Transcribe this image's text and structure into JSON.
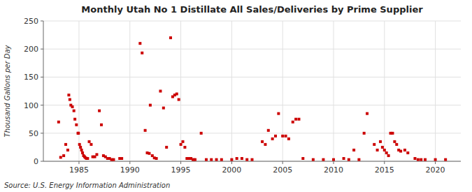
{
  "chart_data": {
    "type": "scatter",
    "title": "Monthly Utah No 1 Distillate All Sales/Deliveries by Prime Supplier",
    "y_label": "Thousand Gallons per Day",
    "source": "Source: U.S. Energy Information Administration",
    "color": "#cc0000",
    "marker": "square",
    "grid": true,
    "xlim": [
      1981.5,
      2022.5
    ],
    "ylim": [
      0,
      250
    ],
    "xticks": [
      1985,
      1990,
      1995,
      2000,
      2005,
      2010,
      2015,
      2020
    ],
    "yticks": [
      0,
      50,
      100,
      150,
      200,
      250
    ],
    "x": [
      1983.0,
      1983.2,
      1983.5,
      1983.7,
      1983.9,
      1984.0,
      1984.1,
      1984.2,
      1984.35,
      1984.5,
      1984.6,
      1984.75,
      1984.9,
      1984.95,
      1985.05,
      1985.15,
      1985.25,
      1985.35,
      1985.45,
      1985.55,
      1985.65,
      1985.75,
      1985.85,
      1986.0,
      1986.2,
      1986.35,
      1986.55,
      1986.75,
      1987.0,
      1987.2,
      1987.4,
      1987.6,
      1987.8,
      1988.0,
      1988.2,
      1988.4,
      1989.0,
      1989.2,
      1991.0,
      1991.2,
      1991.5,
      1991.7,
      1991.9,
      1992.0,
      1992.2,
      1992.4,
      1992.6,
      1993.0,
      1993.3,
      1993.6,
      1994.0,
      1994.2,
      1994.4,
      1994.6,
      1994.8,
      1995.0,
      1995.2,
      1995.4,
      1995.6,
      1995.8,
      1996.0,
      1996.2,
      1996.4,
      1997.0,
      1997.5,
      1998.0,
      1998.5,
      1999.0,
      2000.0,
      2000.5,
      2001.0,
      2001.5,
      2002.0,
      2003.0,
      2003.3,
      2003.6,
      2004.0,
      2004.3,
      2004.6,
      2005.0,
      2005.3,
      2005.6,
      2006.0,
      2006.3,
      2006.6,
      2007.0,
      2008.0,
      2009.0,
      2010.0,
      2011.0,
      2011.5,
      2012.0,
      2012.5,
      2013.0,
      2013.3,
      2014.0,
      2014.3,
      2014.6,
      2014.8,
      2015.0,
      2015.2,
      2015.4,
      2015.6,
      2015.8,
      2016.0,
      2016.2,
      2016.4,
      2016.6,
      2017.0,
      2017.3,
      2018.0,
      2018.3,
      2018.6,
      2019.0,
      2020.0,
      2021.0
    ],
    "values": [
      70,
      7,
      10,
      30,
      20,
      118,
      110,
      100,
      97,
      90,
      75,
      65,
      50,
      50,
      30,
      25,
      20,
      15,
      10,
      8,
      6,
      5,
      5,
      35,
      30,
      8,
      8,
      12,
      90,
      65,
      10,
      8,
      5,
      5,
      3,
      3,
      5,
      5,
      210,
      193,
      55,
      15,
      14,
      100,
      10,
      6,
      5,
      125,
      95,
      25,
      220,
      115,
      118,
      120,
      110,
      30,
      35,
      25,
      5,
      5,
      5,
      3,
      3,
      50,
      3,
      3,
      3,
      3,
      3,
      5,
      5,
      3,
      3,
      35,
      30,
      55,
      40,
      45,
      85,
      45,
      45,
      40,
      70,
      75,
      75,
      5,
      3,
      3,
      3,
      5,
      3,
      20,
      3,
      50,
      85,
      30,
      20,
      35,
      25,
      20,
      15,
      10,
      50,
      50,
      35,
      30,
      20,
      18,
      20,
      15,
      5,
      3,
      3,
      3,
      3,
      3
    ]
  }
}
